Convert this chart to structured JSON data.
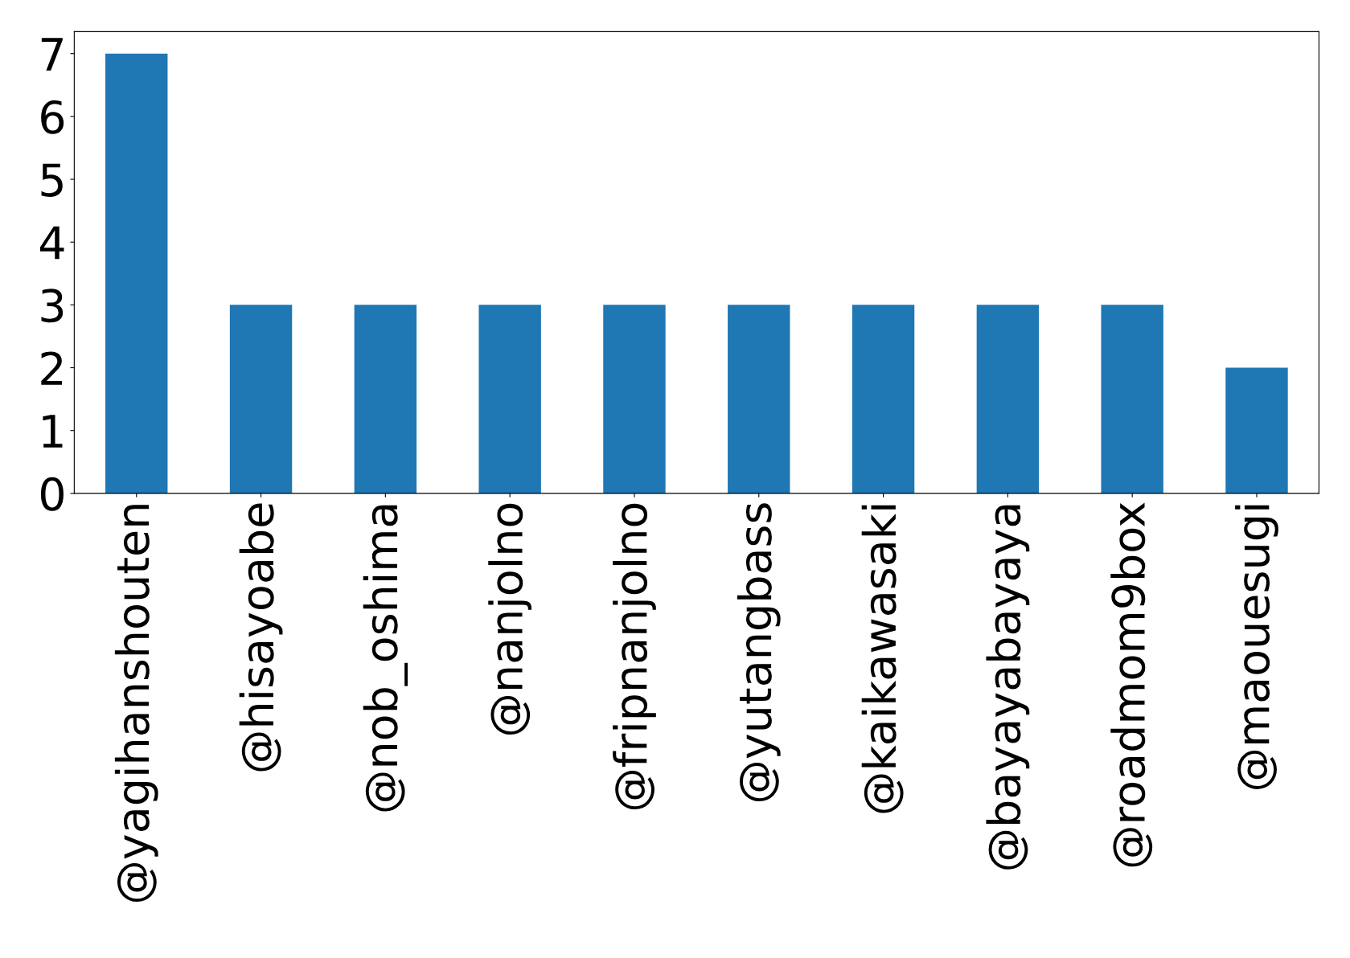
{
  "chart_data": {
    "type": "bar",
    "categories": [
      "@yagihanshouten",
      "@hisayoabe",
      "@nob_oshima",
      "@nanjolno",
      "@fripnanjolno",
      "@yutangbass",
      "@kaikawasaki",
      "@bayayabayaya",
      "@roadmom9box",
      "@maouesugi"
    ],
    "values": [
      7,
      3,
      3,
      3,
      3,
      3,
      3,
      3,
      3,
      2
    ],
    "color": "#1f77b4",
    "ylim": [
      0,
      7.35
    ],
    "yticks": [
      0,
      1,
      2,
      3,
      4,
      5,
      6,
      7
    ],
    "grid": false,
    "legend": false
  }
}
